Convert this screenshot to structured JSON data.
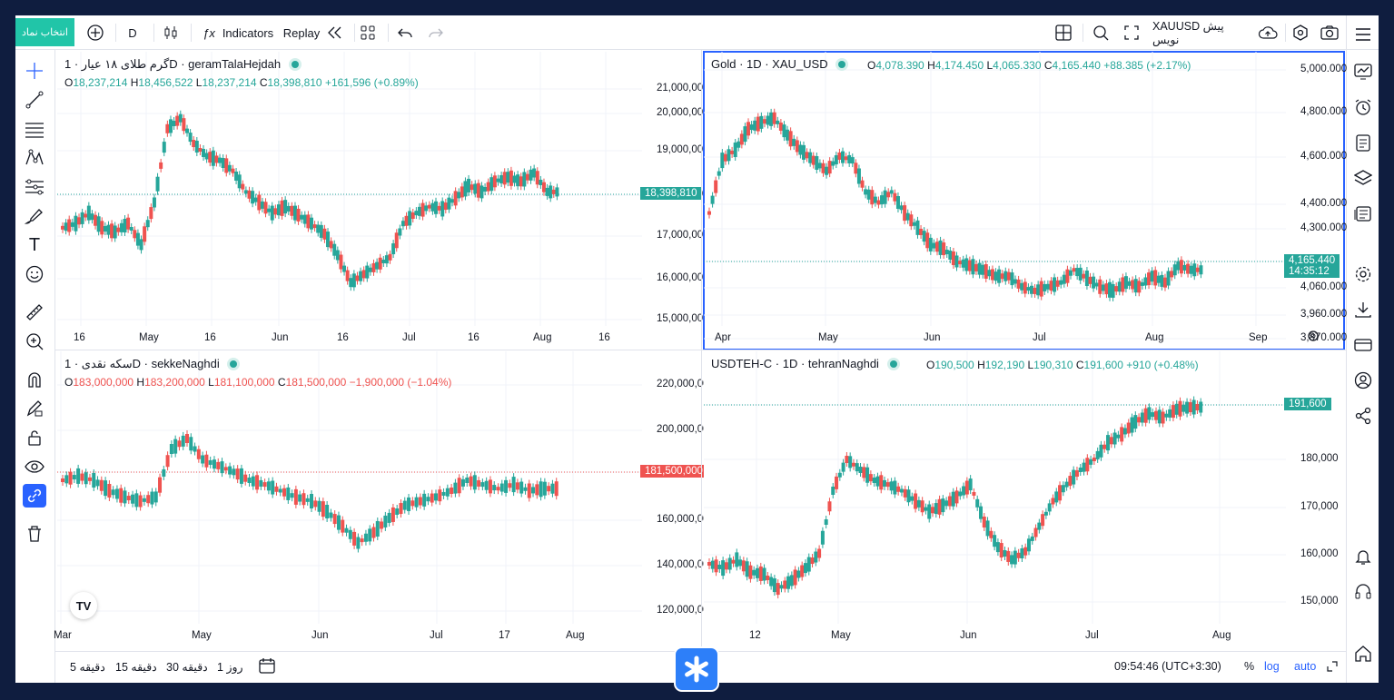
{
  "toolbar": {
    "symbol_button": "انتخاب نماد",
    "interval": "D",
    "indicators": "Indicators",
    "replay": "Replay",
    "symbol_label": "XAUUSD پیش نویس"
  },
  "panes": [
    {
      "title": "گرم طلای ۱۸ عیار · 1D · geramTalaHejdah",
      "ohlc": {
        "o": "18,237,214",
        "h": "18,456,522",
        "l": "18,237,214",
        "c": "18,398,810",
        "chg": "+161,596 (+0.89%)"
      },
      "price_axis": [
        "21,000,000",
        "20,000,000",
        "19,000,000",
        "18,000,000",
        "17,000,000",
        "16,000,000",
        "15,000,000"
      ],
      "time_axis": [
        "16",
        "May",
        "16",
        "Jun",
        "16",
        "Jul",
        "16",
        "Aug",
        "16"
      ],
      "last_price": "18,398,810",
      "trend": "up"
    },
    {
      "title": "Gold · 1D · XAU_USD",
      "ohlc": {
        "o": "4,078.390",
        "h": "4,174.450",
        "l": "4,065.330",
        "c": "4,165.440",
        "chg": "+88.385 (+2.17%)"
      },
      "price_axis": [
        "5,000.000",
        "4,800.000",
        "4,600.000",
        "4,400.000",
        "4,300.000",
        "4,165.440",
        "4,060.000",
        "3,960.000",
        "3,870.000"
      ],
      "time_axis": [
        "Apr",
        "May",
        "Jun",
        "Jul",
        "Aug",
        "Sep"
      ],
      "last_price": "4,165.440",
      "countdown": "14:35:12",
      "trend": "up"
    },
    {
      "title": "سکه نقدی · 1D · sekkeNaghdi",
      "ohlc": {
        "o": "183,000,000",
        "h": "183,200,000",
        "l": "181,100,000",
        "c": "181,500,000",
        "chg": "−1,900,000 (−1.04%)"
      },
      "price_axis": [
        "220,000,000",
        "200,000,000",
        "181,500,000",
        "160,000,000",
        "140,000,000",
        "120,000,000"
      ],
      "time_axis": [
        "Mar",
        "May",
        "Jun",
        "Jul",
        "17",
        "Aug"
      ],
      "last_price": "181,500,000",
      "trend": "down"
    },
    {
      "title": "USDTEH-C · 1D · tehranNaghdi",
      "ohlc": {
        "o": "190,500",
        "h": "192,190",
        "l": "190,310",
        "c": "191,600",
        "chg": "+910 (+0.48%)"
      },
      "price_axis": [
        "191,600",
        "180,000",
        "170,000",
        "160,000",
        "150,000"
      ],
      "time_axis": [
        "12",
        "May",
        "Jun",
        "Jul",
        "Aug"
      ],
      "last_price": "191,600",
      "trend": "up"
    }
  ],
  "bottom": {
    "ranges": [
      "5 دقیقه",
      "15 دقیقه",
      "30 دقیقه",
      "1 روز"
    ],
    "clock": "09:54:46 (UTC+3:30)",
    "percent": "%",
    "log": "log",
    "auto": "auto"
  },
  "colors": {
    "up": "#26a69a",
    "down": "#ef5350",
    "accent": "#2962ff",
    "symbol_btn": "#21c5a8"
  }
}
